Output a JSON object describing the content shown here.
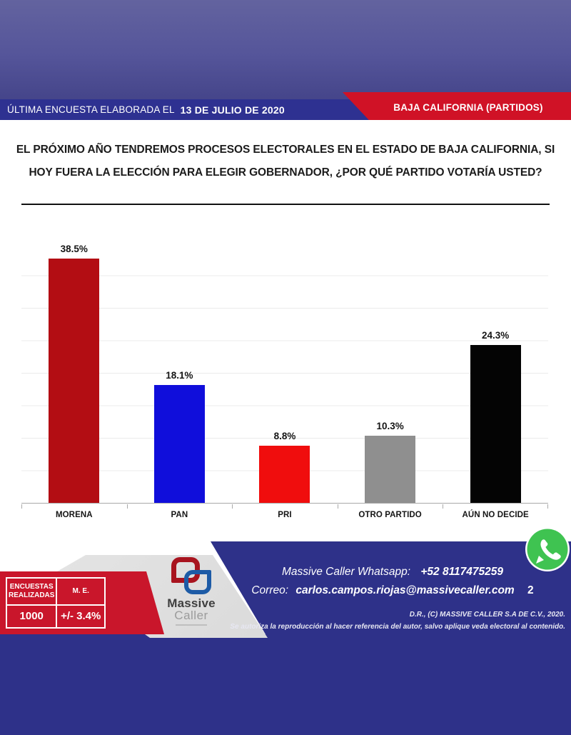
{
  "header": {
    "left_prefix": "ÚLTIMA ENCUESTA ELABORADA EL",
    "left_date": "13 DE JULIO DE 2020",
    "right_label": "BAJA CALIFORNIA (PARTIDOS)"
  },
  "question": "EL PRÓXIMO AÑO TENDREMOS PROCESOS ELECTORALES EN EL ESTADO DE BAJA CALIFORNIA, SI HOY FUERA LA ELECCIÓN PARA ELEGIR GOBERNADOR, ¿POR QUÉ PARTIDO VOTARÍA USTED?",
  "chart_data": {
    "type": "bar",
    "categories": [
      "MORENA",
      "PAN",
      "PRI",
      "OTRO PARTIDO",
      "AÚN NO DECIDE"
    ],
    "values": [
      38.5,
      18.1,
      8.8,
      10.3,
      24.3
    ],
    "value_labels": [
      "38.5%",
      "18.1%",
      "8.8%",
      "10.3%",
      "24.3%"
    ],
    "bar_colors": [
      "#b30d13",
      "#100edb",
      "#f00d0d",
      "#8f8f8f",
      "#040404"
    ],
    "title": "EL PRÓXIMO AÑO TENDREMOS PROCESOS ELECTORALES EN EL ESTADO DE BAJA CALIFORNIA, SI HOY FUERA LA ELECCIÓN PARA ELEGIR GOBERNADOR, ¿POR QUÉ PARTIDO VOTARÍA USTED?",
    "xlabel": "",
    "ylabel": "",
    "ylim": [
      0,
      40
    ],
    "gridline_step": 5,
    "grid": true,
    "legend": false
  },
  "stats_table": {
    "col1_header": "ENCUESTAS REALIZADAS",
    "col2_header": "M. E.",
    "col1_value": "1000",
    "col2_value": "+/- 3.4%"
  },
  "footer": {
    "whatsapp_label": "Massive Caller Whatsapp:",
    "whatsapp_number": "+52 8117475259",
    "email_label": "Correo:",
    "email": "carlos.campos.riojas@massivecaller.com",
    "page_number": "2",
    "copyright": "D.R., (C) MASSIVE CALLER S.A DE C.V., 2020.",
    "disclaimer": "Se autoriza la reproducción al hacer referencia del autor, salvo aplique veda electoral al contenido.",
    "logo_line1": "Massive",
    "logo_line2": "Caller"
  },
  "colors": {
    "banner_blue": "#2e3191",
    "banner_red": "#d01226",
    "footer_blue": "#2e3189",
    "footer_red": "#c9162b",
    "whatsapp_green": "#3fc351",
    "top_gradient_start": "#63639f",
    "top_gradient_end": "#45458a"
  }
}
